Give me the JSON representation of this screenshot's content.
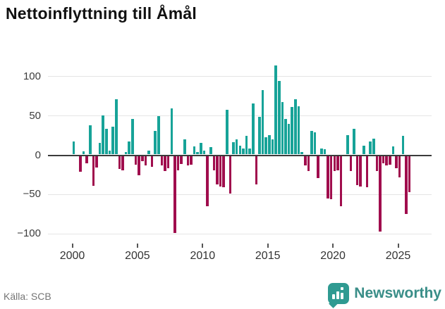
{
  "header": {
    "title": "Nettoinflyttning till Åmål"
  },
  "footer": {
    "source": "Källa: SCB",
    "logo_text": "Newsworthy",
    "logo_icon": "bar-chart-speech-bubble-icon"
  },
  "colors": {
    "positive_bar": "#17a398",
    "negative_bar": "#a00d4d",
    "zero_axis": "#3b3b3b",
    "gridline": "#e5e5e5",
    "logo_teal": "#2f9a91",
    "logo_text_color": "#3a8e88"
  },
  "chart_data": {
    "type": "bar",
    "title": "Nettoinflyttning till Åmål",
    "xlabel": "",
    "ylabel": "",
    "frequency": "quarterly",
    "start_period": "2000-Q1",
    "end_period": "2025-Q4",
    "x_tick_labels": [
      "2000",
      "2005",
      "2010",
      "2015",
      "2020",
      "2025"
    ],
    "y_tick_labels": [
      "100",
      "50",
      "0",
      "−50",
      "−100"
    ],
    "y_ticks": [
      100,
      50,
      0,
      -50,
      -100
    ],
    "ylim": [
      -110,
      122
    ],
    "grid": true,
    "legend": false,
    "values": [
      17,
      0,
      -20,
      4,
      -9,
      37,
      -38,
      -15,
      15,
      50,
      33,
      5,
      35,
      70,
      -17,
      -18,
      3,
      17,
      45,
      -11,
      -25,
      -7,
      -12,
      5,
      -14,
      30,
      49,
      -12,
      -19,
      -16,
      59,
      -98,
      -18,
      -10,
      19,
      -12,
      -11,
      10,
      3,
      15,
      5,
      -64,
      9,
      -18,
      -36,
      -39,
      -40,
      57,
      -48,
      16,
      19,
      11,
      8,
      24,
      8,
      65,
      -36,
      48,
      82,
      22,
      25,
      19,
      113,
      94,
      67,
      45,
      39,
      60,
      70,
      61,
      3,
      -12,
      -19,
      30,
      28,
      -28,
      8,
      7,
      -54,
      -55,
      -19,
      -18,
      -64,
      0,
      25,
      -19,
      33,
      -37,
      -39,
      11,
      -40,
      17,
      20,
      -19,
      -96,
      -9,
      -12,
      -11,
      10,
      -16,
      -27,
      24,
      -74,
      -46
    ]
  }
}
